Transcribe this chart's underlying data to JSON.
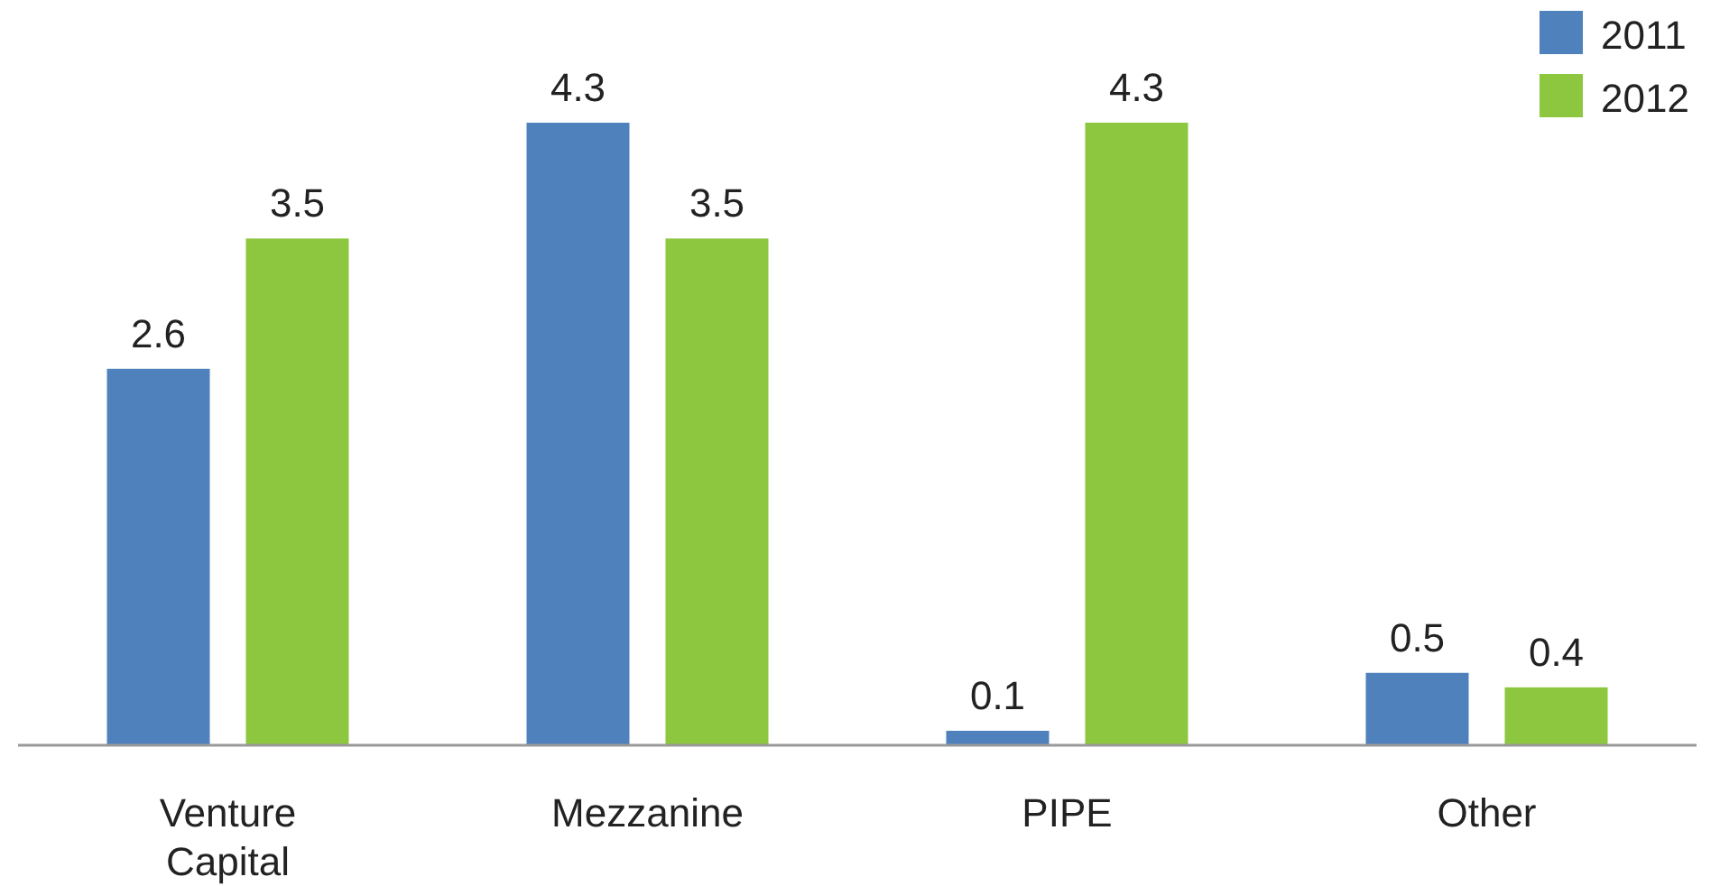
{
  "chart_data": {
    "type": "bar",
    "categories": [
      "Venture Capital",
      "Mezzanine",
      "PIPE",
      "Other"
    ],
    "series": [
      {
        "name": "2011",
        "color": "#4f81bd",
        "values": [
          2.6,
          4.3,
          0.1,
          0.5
        ]
      },
      {
        "name": "2012",
        "color": "#8dc63f",
        "values": [
          3.5,
          3.5,
          4.3,
          0.4
        ]
      }
    ],
    "data_labels": true,
    "legend": "top right"
  }
}
